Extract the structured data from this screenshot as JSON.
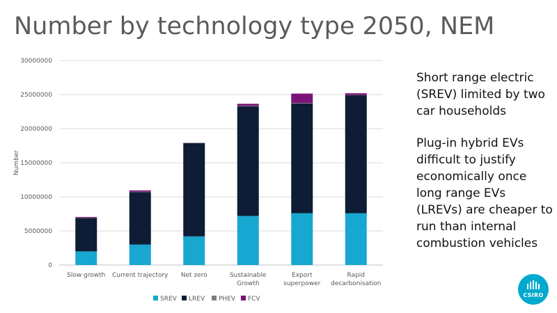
{
  "slide": {
    "title": "Number by technology type 2050, NEM",
    "notes": [
      "Short range electric (SREV) limited by two car households",
      "Plug-in hybrid EVs difficult to justify economically once long range EVs (LREVs) are cheaper to run than internal combustion vehicles"
    ],
    "logo_text": "CSIRO",
    "logo_icon": "csiro-logo-icon"
  },
  "chart_data": {
    "type": "bar",
    "stacked": true,
    "title": "",
    "xlabel": "",
    "ylabel": "Number",
    "ylim": [
      0,
      30000000
    ],
    "yticks": [
      0,
      5000000,
      10000000,
      15000000,
      20000000,
      25000000,
      30000000
    ],
    "ytick_labels": [
      "0",
      "5000000",
      "10000000",
      "15000000",
      "20000000",
      "25000000",
      "30000000"
    ],
    "grid": true,
    "legend_position": "bottom",
    "categories": [
      [
        "Slow growth"
      ],
      [
        "Current trajectory"
      ],
      [
        "Net zero"
      ],
      [
        "Sustainable",
        "Growth"
      ],
      [
        "Export",
        "superpower"
      ],
      [
        "Rapid",
        "decarbonisation"
      ]
    ],
    "series": [
      {
        "name": "SREV",
        "color": "#18a7d1",
        "values": [
          2000000,
          3000000,
          4200000,
          7200000,
          7600000,
          7600000
        ]
      },
      {
        "name": "LREV",
        "color": "#0e1c36",
        "values": [
          4900000,
          7700000,
          13700000,
          16100000,
          16100000,
          17300000
        ]
      },
      {
        "name": "PHEV",
        "color": "#7f7f7f",
        "values": [
          50000,
          50000,
          0,
          50000,
          50000,
          50000
        ]
      },
      {
        "name": "FCV",
        "color": "#7b1478",
        "values": [
          100000,
          200000,
          0,
          300000,
          1400000,
          250000
        ]
      }
    ]
  }
}
